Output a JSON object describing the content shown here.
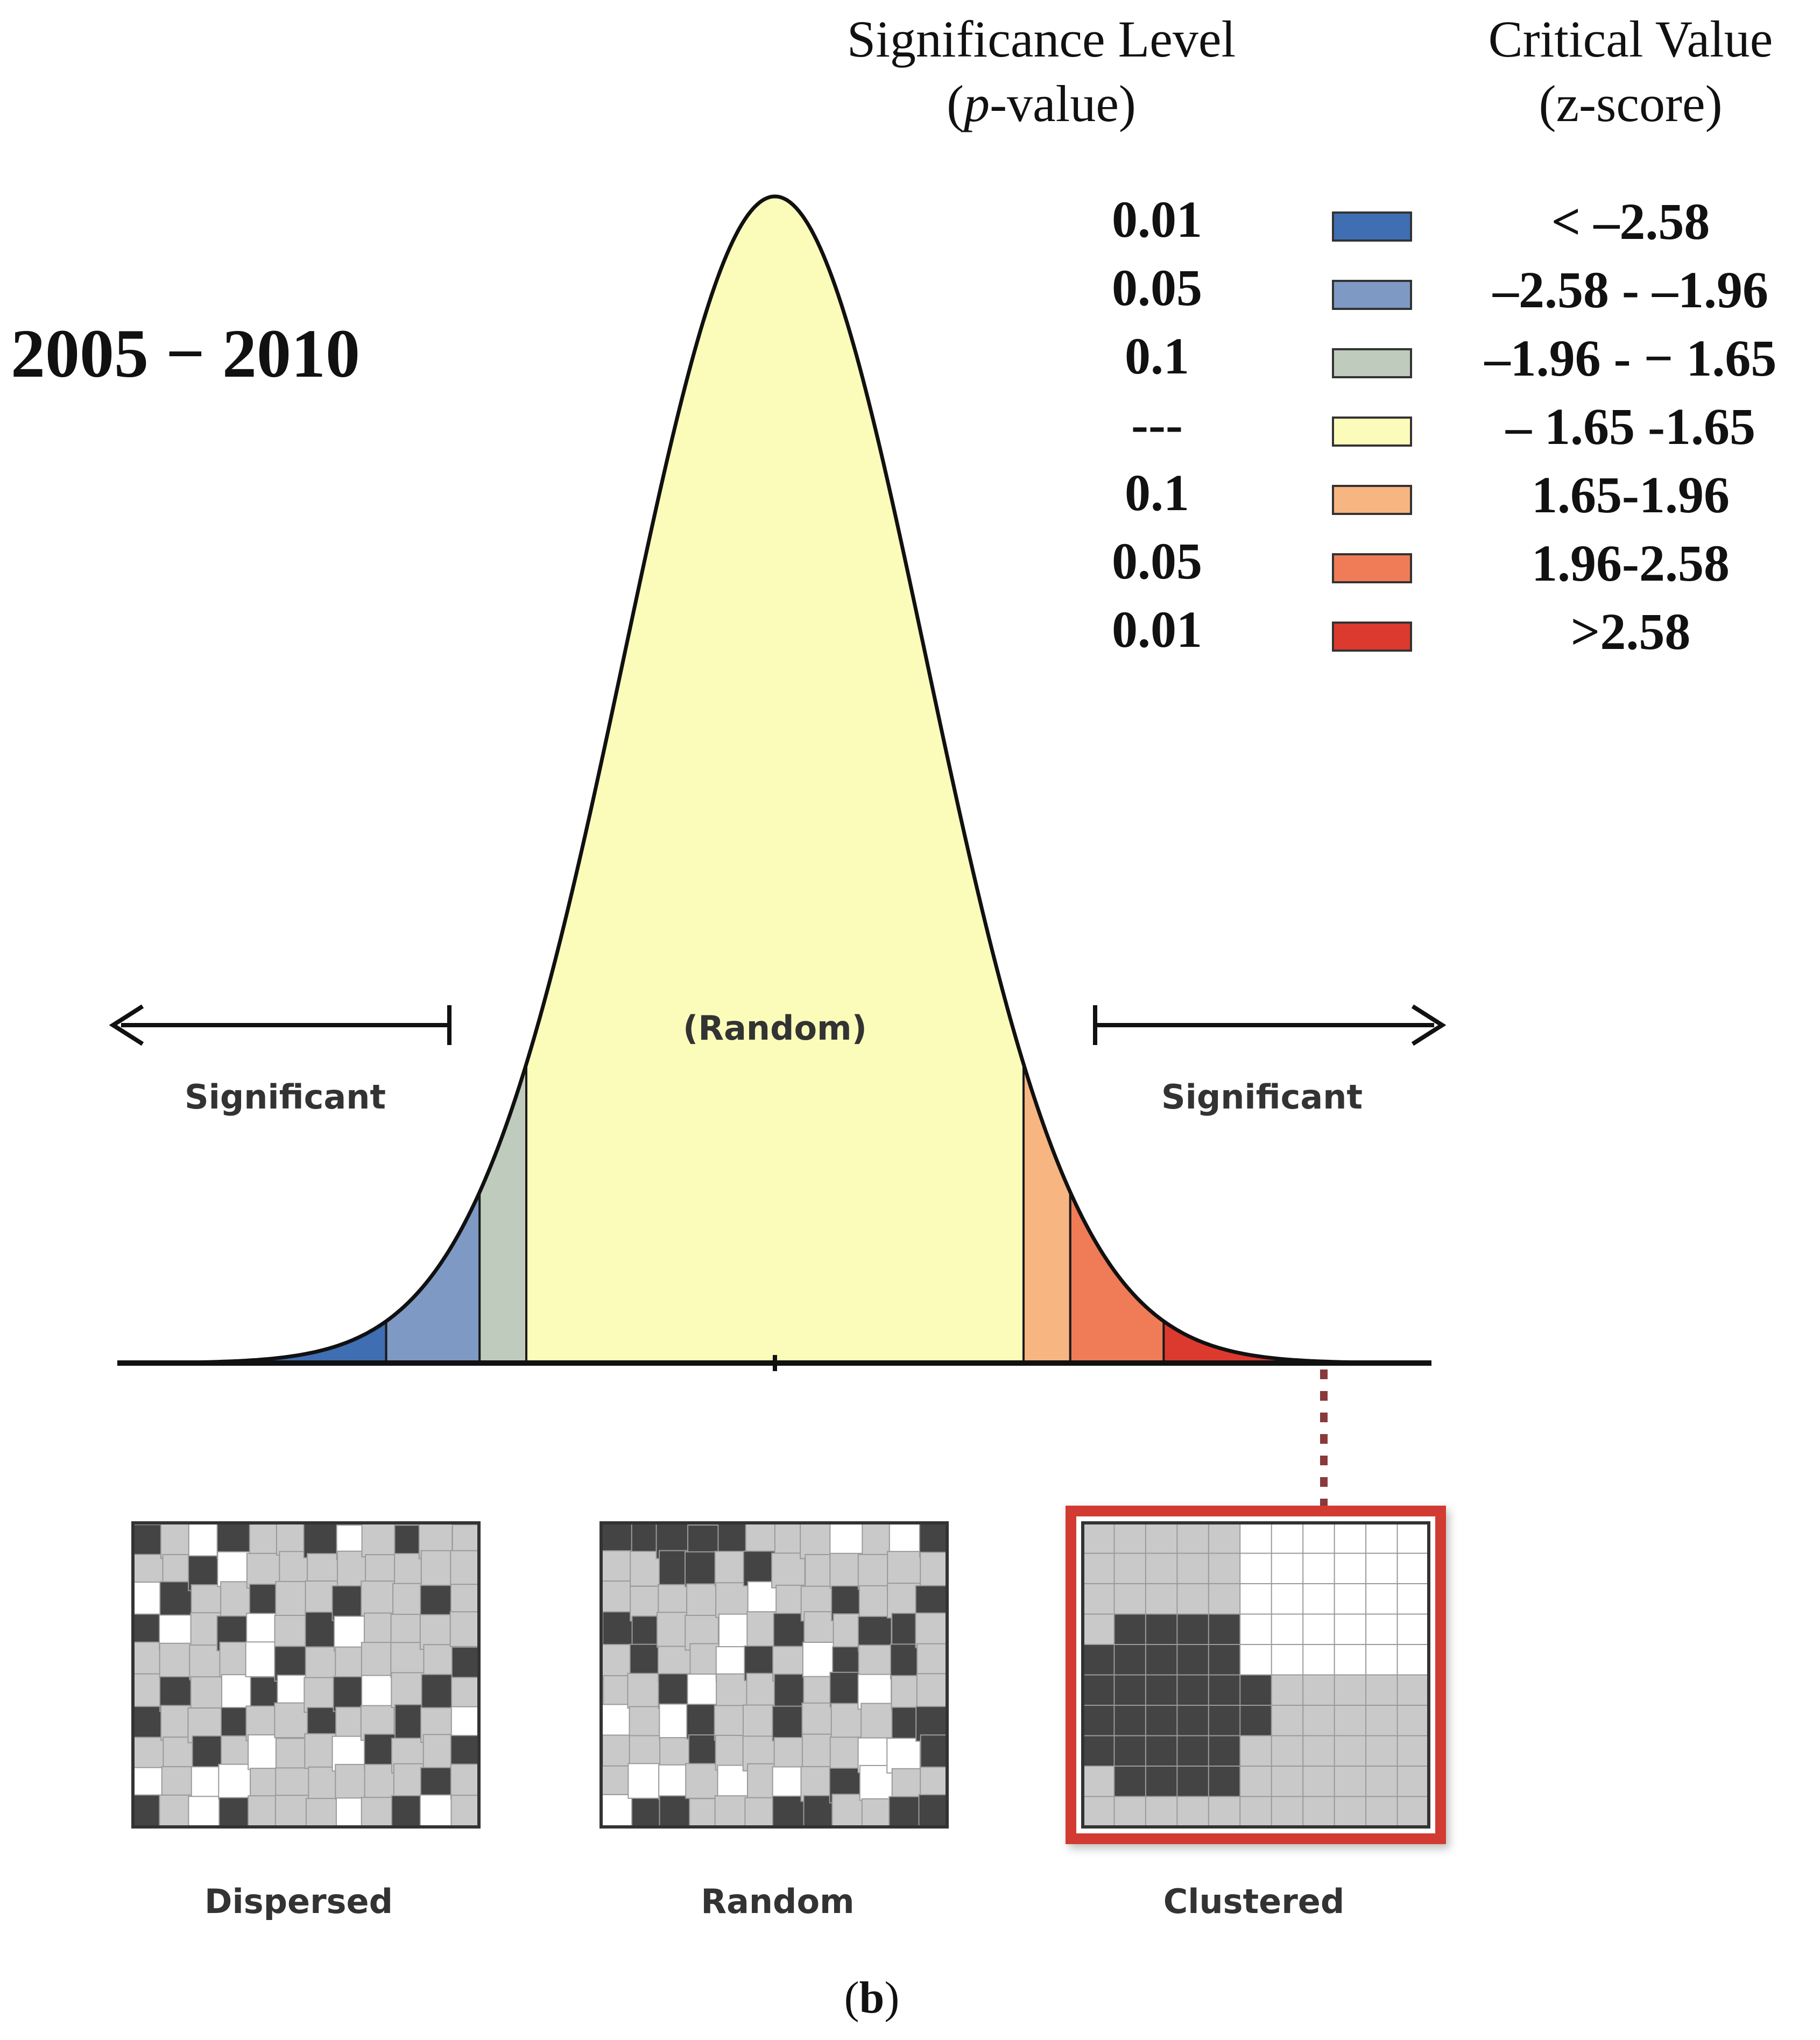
{
  "figure": {
    "period_label": "2005 − 2010",
    "caption_letter": "b"
  },
  "legend": {
    "significance_header_line1": "Significance Level",
    "significance_header_line2_var": "p",
    "significance_header_line2_rest": "-value)",
    "critical_header_line1": "Critical Value",
    "critical_header_line2": "(z-score)",
    "rows": [
      {
        "p": "0.01",
        "z": "< –2.58",
        "color": "#3f6eb3"
      },
      {
        "p": "0.05",
        "z": "–2.58 - –1.96",
        "color": "#7e9ac4"
      },
      {
        "p": "0.1",
        "z": "–1.96 - − 1.65",
        "color": "#bfcbbd"
      },
      {
        "p": "---",
        "z": "– 1.65 -1.65",
        "color": "#fcfcba"
      },
      {
        "p": "0.1",
        "z": "1.65-1.96",
        "color": "#f7b581"
      },
      {
        "p": "0.05",
        "z": "1.96-2.58",
        "color": "#ef7c56"
      },
      {
        "p": "0.01",
        "z": ">2.58",
        "color": "#dc3a2e"
      }
    ]
  },
  "curve": {
    "center_label": "(Random)",
    "left_label": "Significant",
    "right_label": "Significant",
    "band_edges_z": [
      -4,
      -2.58,
      -1.96,
      -1.65,
      1.65,
      1.96,
      2.58,
      4
    ]
  },
  "patterns": [
    {
      "label": "Dispersed"
    },
    {
      "label": "Random"
    },
    {
      "label": "Clustered",
      "highlight_color": "#d23a31"
    }
  ]
}
